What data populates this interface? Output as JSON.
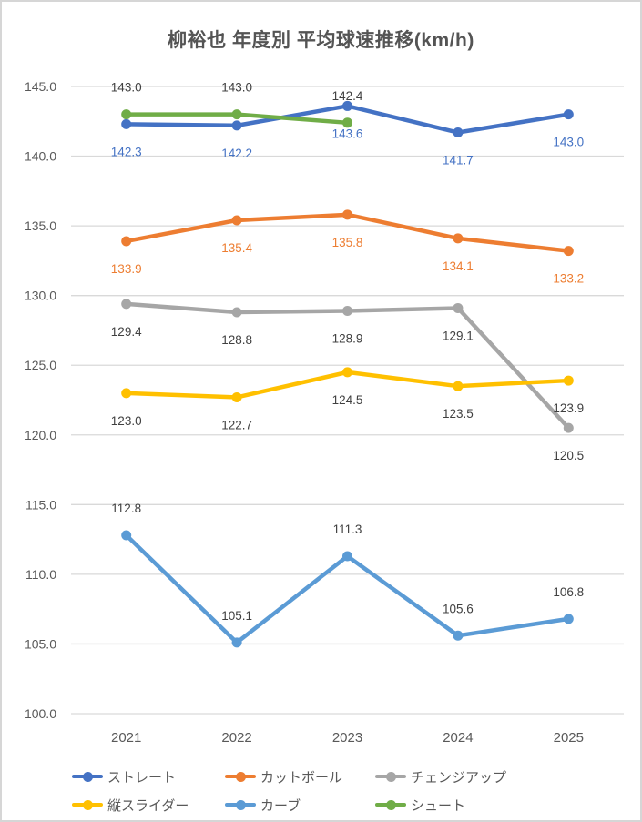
{
  "title": "柳裕也 年度別 平均球速推移(km/h)",
  "chart_data": {
    "type": "line",
    "title": "柳裕也 年度別 平均球速推移(km/h)",
    "categories": [
      "2021",
      "2022",
      "2023",
      "2024",
      "2025"
    ],
    "series": [
      {
        "name": "ストレート",
        "id": "straight",
        "color": "#4472C4",
        "label_color": "#4472C4",
        "label_position": "below",
        "values": [
          142.3,
          142.2,
          143.6,
          141.7,
          143.0
        ]
      },
      {
        "name": "カットボール",
        "id": "cutball",
        "color": "#ED7D31",
        "label_color": "#ED7D31",
        "label_position": "below",
        "values": [
          133.9,
          135.4,
          135.8,
          134.1,
          133.2
        ]
      },
      {
        "name": "チェンジアップ",
        "id": "changeup",
        "color": "#A6A6A6",
        "label_color": "#404040",
        "label_position": "below",
        "values": [
          129.4,
          128.8,
          128.9,
          129.1,
          120.5
        ]
      },
      {
        "name": "縦スライダー",
        "id": "vertical-slider",
        "color": "#FFC000",
        "label_color": "#404040",
        "label_position": "below",
        "values": [
          123.0,
          122.7,
          124.5,
          123.5,
          123.9
        ]
      },
      {
        "name": "カーブ",
        "id": "curve",
        "color": "#5B9BD5",
        "label_color": "#404040",
        "label_position": "above",
        "values": [
          112.8,
          105.1,
          111.3,
          105.6,
          106.8
        ]
      },
      {
        "name": "シュート",
        "id": "shoot",
        "color": "#70AD47",
        "label_color": "#404040",
        "label_position": "above",
        "values": [
          143.0,
          143.0,
          142.4,
          null,
          null
        ]
      }
    ],
    "y_axis": {
      "min": 100,
      "max": 145,
      "step": 5,
      "tick_labels": [
        "145.0",
        "140.0",
        "135.0",
        "130.0",
        "125.0",
        "120.0",
        "115.0",
        "110.0",
        "105.0",
        "100.0"
      ]
    },
    "x_axis": {
      "tick_labels": [
        "2021",
        "2022",
        "2023",
        "2024",
        "2025"
      ]
    },
    "grid": true,
    "legend_position": "bottom",
    "legend_rows": 2,
    "colors": {
      "gridline": "#D9D9D9",
      "axis_text": "#595959",
      "default_label": "#404040",
      "title_text": "#545454",
      "frame_border": "#D6D6D6",
      "background": "#FFFFFF"
    }
  }
}
